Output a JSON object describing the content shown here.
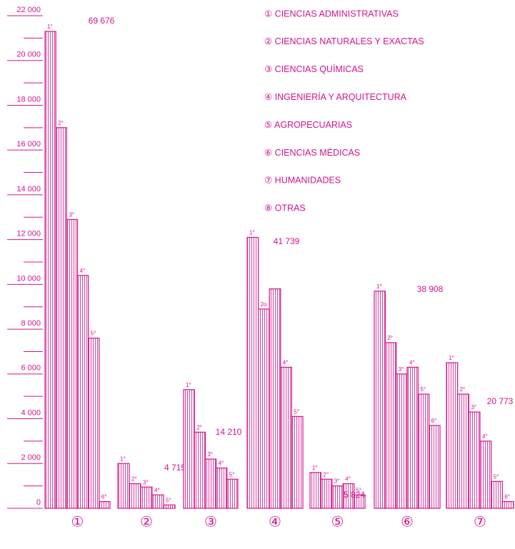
{
  "chart_data": {
    "type": "grouped-bar",
    "color": "#d4148c",
    "legend": [
      "① CIENCIAS ADMINISTRATIVAS",
      "② CIENCIAS NATURALES Y EXACTAS",
      "③ CIENCIAS QUÍMICAS",
      "④ INGENIERÍA Y ARQUITECTURA",
      "⑤ AGROPECUARIAS",
      "⑥ CIENCIAS MÉDICAS",
      "⑦ HUMANIDADES",
      "⑧ OTRAS"
    ],
    "categories": [
      "①",
      "②",
      "③",
      "④",
      "⑤",
      "⑥",
      "⑦"
    ],
    "groups": [
      {
        "bar_labels": [
          "1°",
          "2°",
          "3°",
          "4°",
          "5°",
          "6°"
        ],
        "values": [
          21300,
          17000,
          12900,
          10400,
          7600,
          300
        ]
      },
      {
        "bar_labels": [
          "1°",
          "2°",
          "3°",
          "4°",
          "5°"
        ],
        "values": [
          2000,
          1100,
          950,
          600,
          150
        ]
      },
      {
        "bar_labels": [
          "1°",
          "2°",
          "3°",
          "4°",
          "5°"
        ],
        "values": [
          5300,
          3400,
          2200,
          1800,
          1300
        ]
      },
      {
        "bar_labels": [
          "1°",
          "2o",
          null,
          "4°",
          "5°"
        ],
        "values": [
          12100,
          8900,
          9800,
          6300,
          4100
        ]
      },
      {
        "bar_labels": [
          "1°",
          "2°",
          "3°",
          "4°",
          "5°"
        ],
        "values": [
          1600,
          1300,
          1000,
          1100,
          600
        ]
      },
      {
        "bar_labels": [
          "1°",
          "2°",
          "3°",
          "4°",
          "5°",
          "6°"
        ],
        "values": [
          9700,
          7400,
          6000,
          6300,
          5100,
          3700
        ]
      },
      {
        "bar_labels": [
          "1°",
          "2°",
          "3°",
          "4°",
          "5°",
          "6°"
        ],
        "values": [
          6500,
          5100,
          4300,
          3000,
          1200,
          300
        ]
      }
    ],
    "totals": [
      69676,
      4715,
      14210,
      41739,
      5824,
      38908,
      20773
    ],
    "total_labels": [
      "69 676",
      "4 715",
      "14 210",
      "41 739",
      "5 824",
      "38 908",
      "20 773"
    ],
    "ylim": [
      0,
      22000
    ],
    "yticks": [
      0,
      {
        "value": 2000,
        "label": "2 000"
      },
      {
        "value": 4000,
        "label": "4 000"
      },
      {
        "value": 6000,
        "label": "6 000"
      },
      {
        "value": 8000,
        "label": "8 000"
      },
      {
        "value": 10000,
        "label": "10 000"
      },
      {
        "value": 12000,
        "label": "12 000"
      },
      {
        "value": 14000,
        "label": "14 000"
      },
      {
        "value": 16000,
        "label": "16 000"
      },
      {
        "value": 18000,
        "label": "18 000"
      },
      {
        "value": 20000,
        "label": "20 000"
      },
      {
        "value": 22000,
        "label": "22 000"
      }
    ],
    "minor_yticks": [
      1000,
      3000,
      5000,
      7000,
      9000,
      11000,
      13000,
      15000,
      17000,
      19000,
      21000
    ]
  }
}
